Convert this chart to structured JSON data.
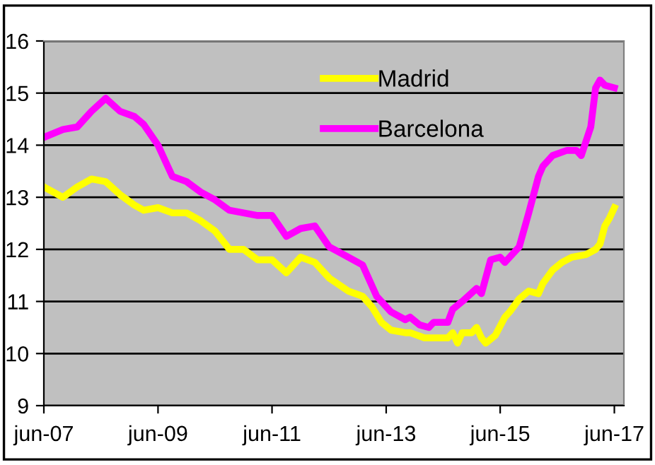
{
  "chart_data": {
    "type": "line",
    "ylim": [
      9,
      16
    ],
    "yticks": [
      9,
      10,
      11,
      12,
      13,
      14,
      15,
      16
    ],
    "xlim": [
      "2007-06",
      "2017-08"
    ],
    "xticks": [
      {
        "value": "2007-06",
        "label": "jun-07"
      },
      {
        "value": "2009-06",
        "label": "jun-09"
      },
      {
        "value": "2011-06",
        "label": "jun-11"
      },
      {
        "value": "2013-06",
        "label": "jun-13"
      },
      {
        "value": "2015-06",
        "label": "jun-15"
      },
      {
        "value": "2017-06",
        "label": "jun-17"
      }
    ],
    "grid": "y",
    "legend": "top",
    "marker": "none",
    "line_style": "solid",
    "series": [
      {
        "name": "Madrid",
        "color": "#ffff00",
        "x": [
          "2007-06",
          "2007-10",
          "2008-01",
          "2008-04",
          "2008-07",
          "2008-10",
          "2009-01",
          "2009-03",
          "2009-06",
          "2009-09",
          "2009-12",
          "2010-03",
          "2010-06",
          "2010-09",
          "2010-12",
          "2011-03",
          "2011-06",
          "2011-09",
          "2011-12",
          "2012-03",
          "2012-06",
          "2012-10",
          "2013-01",
          "2013-03",
          "2013-05",
          "2013-07",
          "2013-10",
          "2013-11",
          "2014-02",
          "2014-07",
          "2014-08",
          "2014-09",
          "2014-10",
          "2014-12",
          "2015-01",
          "2015-02",
          "2015-03",
          "2015-05",
          "2015-07",
          "2015-08",
          "2015-10",
          "2015-12",
          "2016-02",
          "2016-03",
          "2016-05",
          "2016-07",
          "2016-09",
          "2016-12",
          "2017-02",
          "2017-03",
          "2017-04",
          "2017-05",
          "2017-06"
        ],
        "values": [
          13.2,
          13.0,
          13.2,
          13.35,
          13.3,
          13.05,
          12.85,
          12.75,
          12.8,
          12.7,
          12.7,
          12.55,
          12.35,
          12.0,
          12.0,
          11.8,
          11.8,
          11.55,
          11.85,
          11.75,
          11.45,
          11.2,
          11.1,
          10.9,
          10.6,
          10.45,
          10.4,
          10.4,
          10.3,
          10.3,
          10.4,
          10.2,
          10.4,
          10.4,
          10.5,
          10.3,
          10.2,
          10.35,
          10.7,
          10.8,
          11.05,
          11.2,
          11.15,
          11.35,
          11.6,
          11.75,
          11.85,
          11.9,
          12.0,
          12.1,
          12.45,
          12.6,
          12.8
        ]
      },
      {
        "name": "Barcelona",
        "color": "#ff00ff",
        "x": [
          "2007-06",
          "2007-10",
          "2008-01",
          "2008-04",
          "2008-07",
          "2008-10",
          "2009-01",
          "2009-03",
          "2009-06",
          "2009-09",
          "2009-12",
          "2010-03",
          "2010-06",
          "2010-09",
          "2010-12",
          "2011-03",
          "2011-06",
          "2011-09",
          "2011-12",
          "2012-03",
          "2012-06",
          "2012-08",
          "2013-01",
          "2013-04",
          "2013-07",
          "2013-10",
          "2013-11",
          "2014-01",
          "2014-03",
          "2014-04",
          "2014-07",
          "2014-08",
          "2014-10",
          "2015-01",
          "2015-02",
          "2015-04",
          "2015-06",
          "2015-07",
          "2015-10",
          "2015-12",
          "2016-02",
          "2016-03",
          "2016-05",
          "2016-08",
          "2016-10",
          "2016-11",
          "2017-01",
          "2017-02",
          "2017-03",
          "2017-04",
          "2017-06"
        ],
        "values": [
          14.15,
          14.3,
          14.35,
          14.65,
          14.9,
          14.65,
          14.55,
          14.4,
          14.0,
          13.4,
          13.3,
          13.1,
          12.95,
          12.75,
          12.7,
          12.65,
          12.65,
          12.25,
          12.4,
          12.45,
          12.05,
          11.95,
          11.7,
          11.1,
          10.8,
          10.65,
          10.7,
          10.55,
          10.5,
          10.6,
          10.6,
          10.85,
          11.0,
          11.25,
          11.15,
          11.8,
          11.85,
          11.75,
          12.05,
          12.7,
          13.4,
          13.6,
          13.8,
          13.9,
          13.9,
          13.8,
          14.35,
          15.1,
          15.25,
          15.15,
          15.1
        ]
      }
    ]
  }
}
